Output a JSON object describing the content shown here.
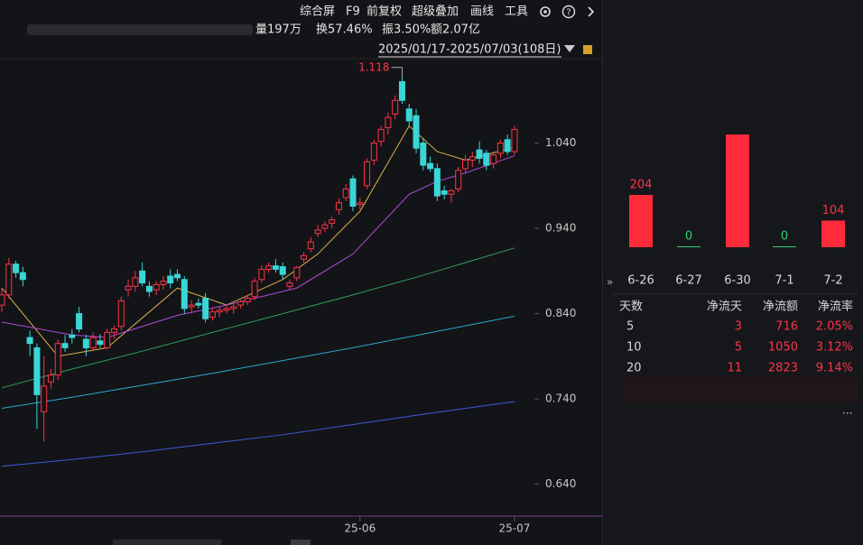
{
  "toolbar": {
    "items": [
      "综合屏",
      "F9",
      "前复权",
      "超级叠加",
      "画线",
      "工具"
    ]
  },
  "stats": [
    "量197万",
    "换57.46%",
    "振3.50%",
    "额2.07亿"
  ],
  "date_range": "2025/01/17-2025/07/03(108日)",
  "price_chart": {
    "type": "candlestick",
    "ylim": [
      0.61,
      1.14
    ],
    "yticks": [
      {
        "value": 1.04,
        "label": "1.040"
      },
      {
        "value": 0.94,
        "label": "0.940"
      },
      {
        "value": 0.84,
        "label": "0.840"
      },
      {
        "value": 0.74,
        "label": "0.740"
      },
      {
        "value": 0.64,
        "label": "0.640"
      }
    ],
    "high": 1.118,
    "high_index": 57,
    "x_labels": [
      {
        "index": 51,
        "label": "25-06"
      },
      {
        "index": 73,
        "label": "25-07"
      }
    ],
    "up_color": "#ff3344",
    "down_color": "#3ad6d6",
    "candles": [
      [
        0.85,
        0.87,
        0.842,
        0.862
      ],
      [
        0.862,
        0.905,
        0.858,
        0.898
      ],
      [
        0.898,
        0.902,
        0.882,
        0.888
      ],
      [
        0.888,
        0.895,
        0.872,
        0.88
      ],
      [
        0.812,
        0.82,
        0.79,
        0.805
      ],
      [
        0.8,
        0.805,
        0.705,
        0.745
      ],
      [
        0.725,
        0.79,
        0.69,
        0.755
      ],
      [
        0.76,
        0.775,
        0.752,
        0.768
      ],
      [
        0.768,
        0.81,
        0.762,
        0.805
      ],
      [
        0.805,
        0.815,
        0.795,
        0.8
      ],
      [
        0.815,
        0.822,
        0.805,
        0.812
      ],
      [
        0.84,
        0.848,
        0.818,
        0.822
      ],
      [
        0.81,
        0.815,
        0.79,
        0.8
      ],
      [
        0.8,
        0.818,
        0.796,
        0.812
      ],
      [
        0.808,
        0.816,
        0.8,
        0.804
      ],
      [
        0.8,
        0.822,
        0.798,
        0.818
      ],
      [
        0.818,
        0.826,
        0.81,
        0.822
      ],
      [
        0.825,
        0.86,
        0.82,
        0.855
      ],
      [
        0.868,
        0.88,
        0.86,
        0.872
      ],
      [
        0.872,
        0.89,
        0.866,
        0.882
      ],
      [
        0.89,
        0.9,
        0.872,
        0.876
      ],
      [
        0.872,
        0.878,
        0.86,
        0.866
      ],
      [
        0.868,
        0.878,
        0.862,
        0.874
      ],
      [
        0.874,
        0.884,
        0.868,
        0.878
      ],
      [
        0.884,
        0.892,
        0.87,
        0.876
      ],
      [
        0.886,
        0.892,
        0.878,
        0.882
      ],
      [
        0.88,
        0.884,
        0.84,
        0.846
      ],
      [
        0.848,
        0.856,
        0.842,
        0.85
      ],
      [
        0.852,
        0.858,
        0.846,
        0.85
      ],
      [
        0.858,
        0.864,
        0.83,
        0.834
      ],
      [
        0.836,
        0.846,
        0.832,
        0.842
      ],
      [
        0.842,
        0.848,
        0.836,
        0.844
      ],
      [
        0.844,
        0.85,
        0.84,
        0.846
      ],
      [
        0.846,
        0.852,
        0.84,
        0.848
      ],
      [
        0.85,
        0.856,
        0.846,
        0.854
      ],
      [
        0.854,
        0.862,
        0.85,
        0.858
      ],
      [
        0.86,
        0.882,
        0.856,
        0.878
      ],
      [
        0.88,
        0.896,
        0.876,
        0.892
      ],
      [
        0.892,
        0.9,
        0.888,
        0.896
      ],
      [
        0.896,
        0.904,
        0.888,
        0.892
      ],
      [
        0.895,
        0.9,
        0.88,
        0.886
      ],
      [
        0.872,
        0.88,
        0.868,
        0.876
      ],
      [
        0.882,
        0.896,
        0.878,
        0.894
      ],
      [
        0.904,
        0.912,
        0.9,
        0.908
      ],
      [
        0.916,
        0.93,
        0.912,
        0.924
      ],
      [
        0.934,
        0.944,
        0.93,
        0.938
      ],
      [
        0.94,
        0.948,
        0.936,
        0.944
      ],
      [
        0.946,
        0.954,
        0.94,
        0.95
      ],
      [
        0.962,
        0.975,
        0.956,
        0.97
      ],
      [
        0.976,
        0.992,
        0.972,
        0.986
      ],
      [
        0.998,
        1.002,
        0.96,
        0.966
      ],
      [
        0.968,
        0.976,
        0.962,
        0.97
      ],
      [
        0.99,
        1.022,
        0.986,
        1.018
      ],
      [
        1.02,
        1.044,
        1.014,
        1.04
      ],
      [
        1.042,
        1.06,
        1.036,
        1.056
      ],
      [
        1.058,
        1.076,
        1.05,
        1.07
      ],
      [
        1.074,
        1.096,
        1.068,
        1.09
      ],
      [
        1.112,
        1.118,
        1.086,
        1.09
      ],
      [
        1.08,
        1.086,
        1.06,
        1.066
      ],
      [
        1.072,
        1.08,
        1.028,
        1.034
      ],
      [
        1.04,
        1.046,
        1.008,
        1.014
      ],
      [
        1.016,
        1.024,
        1.006,
        1.01
      ],
      [
        1.01,
        1.016,
        0.972,
        0.978
      ],
      [
        0.984,
        0.99,
        0.974,
        0.98
      ],
      [
        0.98,
        0.986,
        0.97,
        0.984
      ],
      [
        0.986,
        1.012,
        0.982,
        1.008
      ],
      [
        1.01,
        1.026,
        1.004,
        1.02
      ],
      [
        1.02,
        1.03,
        1.012,
        1.024
      ],
      [
        1.032,
        1.042,
        1.016,
        1.022
      ],
      [
        1.028,
        1.032,
        1.008,
        1.014
      ],
      [
        1.016,
        1.03,
        1.01,
        1.026
      ],
      [
        1.028,
        1.044,
        1.022,
        1.04
      ],
      [
        1.044,
        1.05,
        1.026,
        1.03
      ],
      [
        1.03,
        1.06,
        1.026,
        1.056
      ]
    ],
    "moving_averages": [
      {
        "color": "#d9b24a",
        "x": [
          0,
          8,
          15,
          25,
          32,
          40,
          45,
          51,
          58,
          62,
          66,
          73
        ],
        "values": [
          0.87,
          0.79,
          0.8,
          0.87,
          0.85,
          0.88,
          0.91,
          0.96,
          1.06,
          1.03,
          1.02,
          1.035
        ]
      },
      {
        "color": "#b04ad9",
        "x": [
          0,
          10,
          15,
          25,
          32,
          42,
          50,
          58,
          62,
          66,
          73
        ],
        "values": [
          0.83,
          0.815,
          0.812,
          0.838,
          0.85,
          0.87,
          0.91,
          0.98,
          0.995,
          1.005,
          1.025
        ]
      },
      {
        "color": "#2f9e5a",
        "x": [
          0,
          10,
          20,
          30,
          40,
          50,
          60,
          73
        ],
        "values": [
          0.753,
          0.775,
          0.796,
          0.818,
          0.84,
          0.862,
          0.885,
          0.917
        ]
      },
      {
        "color": "#2aa9c9",
        "x": [
          0,
          10,
          20,
          30,
          40,
          50,
          60,
          73
        ],
        "values": [
          0.729,
          0.742,
          0.756,
          0.77,
          0.785,
          0.8,
          0.816,
          0.837
        ]
      },
      {
        "color": "#3a5bd9",
        "x": [
          0,
          10,
          20,
          30,
          40,
          50,
          60,
          73
        ],
        "values": [
          0.661,
          0.669,
          0.678,
          0.688,
          0.698,
          0.71,
          0.722,
          0.737
        ]
      }
    ]
  },
  "flow_chart": {
    "type": "bar",
    "color": "#ff2a3a",
    "categories": [
      "6-26",
      "6-27",
      "6-30",
      "7-1",
      "7-2"
    ],
    "values": [
      204,
      0,
      440,
      0,
      104
    ],
    "value_labels": [
      "204",
      "0",
      null,
      "0",
      "104"
    ],
    "label_colors": [
      "#ff3344",
      "#2fcf6f",
      null,
      "#2fcf6f",
      "#ff3344"
    ]
  },
  "flow_table": {
    "headers": [
      "天数",
      "净流天",
      "净流额",
      "净流率"
    ],
    "rows": [
      [
        "5",
        "3",
        "716",
        "2.05%"
      ],
      [
        "10",
        "5",
        "1050",
        "3.12%"
      ],
      [
        "20",
        "11",
        "2823",
        "9.14%"
      ]
    ]
  }
}
